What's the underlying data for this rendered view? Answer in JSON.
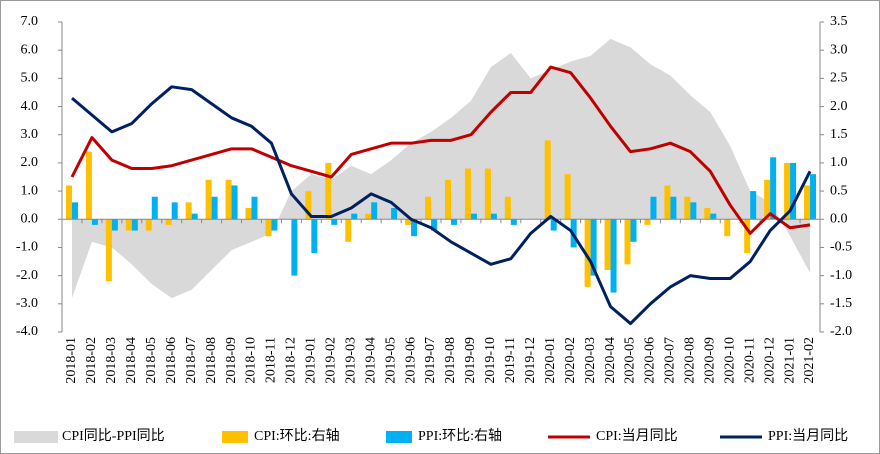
{
  "chart_data": {
    "type": "combo",
    "categories": [
      "2018-01",
      "2018-02",
      "2018-03",
      "2018-04",
      "2018-05",
      "2018-06",
      "2018-07",
      "2018-08",
      "2018-09",
      "2018-10",
      "2018-11",
      "2018-12",
      "2019-01",
      "2019-02",
      "2019-03",
      "2019-04",
      "2019-05",
      "2019-06",
      "2019-07",
      "2019-08",
      "2019-09",
      "2019-10",
      "2019-11",
      "2019-12",
      "2020-01",
      "2020-02",
      "2020-03",
      "2020-04",
      "2020-05",
      "2020-06",
      "2020-07",
      "2020-08",
      "2020-09",
      "2020-10",
      "2020-11",
      "2020-12",
      "2021-01",
      "2021-02"
    ],
    "series": [
      {
        "name": "CPI同比-PPI同比",
        "type": "area",
        "color": "#d9d9d9",
        "values": [
          -2.8,
          -0.8,
          -1.0,
          -1.6,
          -2.3,
          -2.8,
          -2.5,
          -1.8,
          -1.1,
          -0.8,
          -0.5,
          1.0,
          1.6,
          1.4,
          1.9,
          1.6,
          2.1,
          2.7,
          3.1,
          3.6,
          4.2,
          5.4,
          5.9,
          5.0,
          5.3,
          5.6,
          5.8,
          6.4,
          6.1,
          5.5,
          5.1,
          4.4,
          3.8,
          2.6,
          1.0,
          0.6,
          -0.6,
          -1.9
        ]
      },
      {
        "name": "CPI:环比:右轴",
        "type": "bar",
        "axis": "y2",
        "color": "#ffc000",
        "values": [
          0.6,
          1.2,
          -1.1,
          -0.2,
          -0.2,
          -0.1,
          0.3,
          0.7,
          0.7,
          0.2,
          -0.3,
          0.0,
          0.5,
          1.0,
          -0.4,
          0.1,
          0.0,
          -0.1,
          0.4,
          0.7,
          0.9,
          0.9,
          0.4,
          0.0,
          1.4,
          0.8,
          -1.2,
          -0.9,
          -0.8,
          -0.1,
          0.6,
          0.4,
          0.2,
          -0.3,
          -0.6,
          0.7,
          1.0,
          0.6
        ]
      },
      {
        "name": "PPI:环比:右轴",
        "type": "bar",
        "axis": "y2",
        "color": "#00b0f0",
        "values": [
          0.3,
          -0.1,
          -0.2,
          -0.2,
          0.4,
          0.3,
          0.1,
          0.4,
          0.6,
          0.4,
          -0.2,
          -1.0,
          -0.6,
          -0.1,
          0.1,
          0.3,
          0.2,
          -0.3,
          -0.2,
          -0.1,
          0.1,
          0.1,
          -0.1,
          0.0,
          -0.2,
          -0.5,
          -1.0,
          -1.3,
          -0.4,
          0.4,
          0.4,
          0.3,
          0.1,
          0.0,
          0.5,
          1.1,
          1.0,
          0.8
        ]
      },
      {
        "name": "CPI:当月同比",
        "type": "line",
        "color": "#c00000",
        "values": [
          1.5,
          2.9,
          2.1,
          1.8,
          1.8,
          1.9,
          2.1,
          2.3,
          2.5,
          2.5,
          2.2,
          1.9,
          1.7,
          1.5,
          2.3,
          2.5,
          2.7,
          2.7,
          2.8,
          2.8,
          3.0,
          3.8,
          4.5,
          4.5,
          5.4,
          5.2,
          4.3,
          3.3,
          2.4,
          2.5,
          2.7,
          2.4,
          1.7,
          0.5,
          -0.5,
          0.2,
          -0.3,
          -0.2
        ]
      },
      {
        "name": "PPI:当月同比",
        "type": "line",
        "color": "#002060",
        "values": [
          4.3,
          3.7,
          3.1,
          3.4,
          4.1,
          4.7,
          4.6,
          4.1,
          3.6,
          3.3,
          2.7,
          0.9,
          0.1,
          0.1,
          0.4,
          0.9,
          0.6,
          0.0,
          -0.3,
          -0.8,
          -1.2,
          -1.6,
          -1.4,
          -0.5,
          0.1,
          -0.4,
          -1.5,
          -3.1,
          -3.7,
          -3.0,
          -2.4,
          -2.0,
          -2.1,
          -2.1,
          -1.5,
          -0.4,
          0.3,
          1.7
        ]
      }
    ],
    "ylim": [
      -4,
      7
    ],
    "yticks": [
      {
        "value": 7,
        "label": "7.0"
      },
      {
        "value": 6,
        "label": "6.0"
      },
      {
        "value": 5,
        "label": "5.0"
      },
      {
        "value": 4,
        "label": "4.0"
      },
      {
        "value": 3,
        "label": "3.0"
      },
      {
        "value": 2,
        "label": "2.0"
      },
      {
        "value": 1,
        "label": "1.0"
      },
      {
        "value": 0,
        "label": "0.0"
      },
      {
        "value": -1,
        "label": "-1.0"
      },
      {
        "value": -2,
        "label": "-2.0"
      },
      {
        "value": -3,
        "label": "-3.0"
      },
      {
        "value": -4,
        "label": "-4.0"
      }
    ],
    "y2lim": [
      -2,
      3.5
    ],
    "y2ticks": [
      3.5,
      {
        "value": 3,
        "label": "3.0"
      },
      2.5,
      {
        "value": 2,
        "label": "2.0"
      },
      1.5,
      {
        "value": 1,
        "label": "1.0"
      },
      0.5,
      {
        "value": 0,
        "label": "0.0"
      },
      -0.5,
      {
        "value": -1,
        "label": "-1.0"
      },
      -1.5,
      {
        "value": -2,
        "label": "-2.0"
      }
    ]
  }
}
